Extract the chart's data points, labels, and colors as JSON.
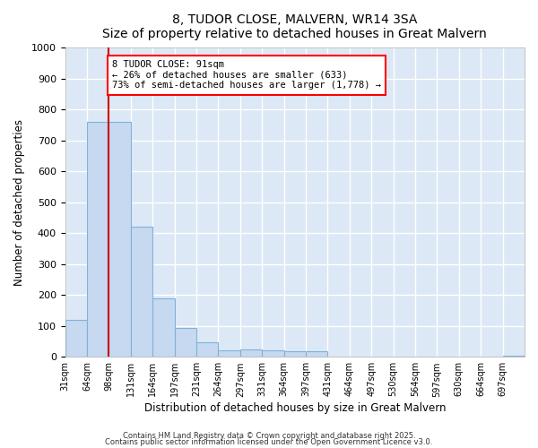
{
  "title1": "8, TUDOR CLOSE, MALVERN, WR14 3SA",
  "title2": "Size of property relative to detached houses in Great Malvern",
  "xlabel": "Distribution of detached houses by size in Great Malvern",
  "ylabel": "Number of detached properties",
  "bar_color": "#c6d9f1",
  "bar_edge_color": "#7eb3d8",
  "background_color": "#dce8f5",
  "grid_color": "#ffffff",
  "annotation_text_line1": "8 TUDOR CLOSE: 91sqm",
  "annotation_text_line2": "← 26% of detached houses are smaller (633)",
  "annotation_text_line3": "73% of semi-detached houses are larger (1,778) →",
  "vline_index": 2,
  "vline_color": "#cc0000",
  "ylim": [
    0,
    1000
  ],
  "categories": [
    "31sqm",
    "64sqm",
    "98sqm",
    "131sqm",
    "164sqm",
    "197sqm",
    "231sqm",
    "264sqm",
    "297sqm",
    "331sqm",
    "364sqm",
    "397sqm",
    "431sqm",
    "464sqm",
    "497sqm",
    "530sqm",
    "564sqm",
    "597sqm",
    "630sqm",
    "664sqm",
    "697sqm"
  ],
  "values": [
    120,
    760,
    760,
    420,
    190,
    95,
    47,
    22,
    25,
    20,
    18,
    18,
    0,
    0,
    0,
    0,
    0,
    0,
    0,
    0,
    5
  ],
  "footnote1": "Contains HM Land Registry data © Crown copyright and database right 2025.",
  "footnote2": "Contains public sector information licensed under the Open Government Licence v3.0."
}
